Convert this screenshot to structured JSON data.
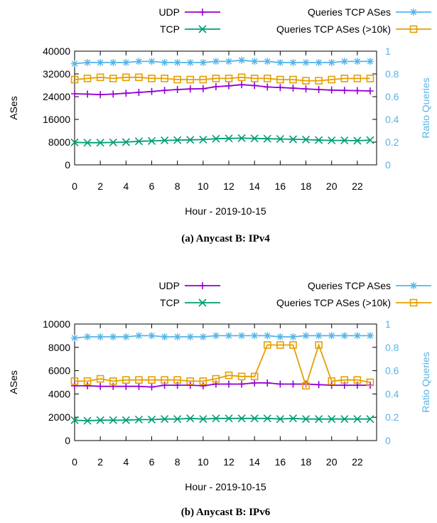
{
  "chart_data": [
    {
      "type": "line",
      "caption": "(a) Anycast B: IPv4",
      "xlabel": "Hour - 2019-10-15",
      "ylabel": "ASes",
      "ylabel_right": "Ratio Queries",
      "x": [
        0,
        1,
        2,
        3,
        4,
        5,
        6,
        7,
        8,
        9,
        10,
        11,
        12,
        13,
        14,
        15,
        16,
        17,
        18,
        19,
        20,
        21,
        22,
        23
      ],
      "x_ticks": [
        "0",
        "2",
        "4",
        "6",
        "8",
        "10",
        "12",
        "14",
        "16",
        "18",
        "20",
        "22"
      ],
      "ylim": [
        0,
        40000
      ],
      "y_ticks": [
        "0",
        "8000",
        "16000",
        "24000",
        "32000",
        "40000"
      ],
      "ylim_right": [
        0,
        1
      ],
      "y_ticks_right": [
        "0",
        "0.2",
        "0.4",
        "0.6",
        "0.8",
        "1"
      ],
      "legend_placement": "top",
      "series": [
        {
          "name": "UDP",
          "axis": "left",
          "marker": "plus",
          "color": "#9400d3",
          "values": [
            25000,
            24900,
            24700,
            24900,
            25200,
            25500,
            25800,
            26200,
            26500,
            26700,
            26800,
            27500,
            27800,
            28200,
            27900,
            27400,
            27200,
            27000,
            26700,
            26500,
            26300,
            26200,
            26100,
            26000
          ]
        },
        {
          "name": "TCP",
          "axis": "left",
          "marker": "x",
          "color": "#009e73",
          "values": [
            7900,
            7800,
            7800,
            7900,
            8000,
            8300,
            8400,
            8600,
            8700,
            8800,
            8900,
            9200,
            9300,
            9400,
            9300,
            9200,
            9100,
            9000,
            8900,
            8700,
            8600,
            8600,
            8500,
            8700
          ]
        },
        {
          "name": "Queries TCP ASes",
          "axis": "right",
          "marker": "star",
          "color": "#56b4e9",
          "values": [
            0.89,
            0.9,
            0.9,
            0.9,
            0.9,
            0.91,
            0.91,
            0.9,
            0.9,
            0.9,
            0.9,
            0.91,
            0.91,
            0.92,
            0.91,
            0.91,
            0.9,
            0.9,
            0.9,
            0.9,
            0.9,
            0.91,
            0.91,
            0.91
          ]
        },
        {
          "name": "Queries TCP ASes (>10k)",
          "axis": "right",
          "marker": "square",
          "color": "#e69f00",
          "values": [
            0.75,
            0.76,
            0.77,
            0.76,
            0.77,
            0.77,
            0.76,
            0.76,
            0.75,
            0.75,
            0.75,
            0.76,
            0.76,
            0.77,
            0.76,
            0.76,
            0.75,
            0.75,
            0.74,
            0.74,
            0.75,
            0.76,
            0.76,
            0.76
          ]
        }
      ]
    },
    {
      "type": "line",
      "caption": "(b) Anycast B: IPv6",
      "xlabel": "Hour - 2019-10-15",
      "ylabel": "ASes",
      "ylabel_right": "Ratio Queries",
      "x": [
        0,
        1,
        2,
        3,
        4,
        5,
        6,
        7,
        8,
        9,
        10,
        11,
        12,
        13,
        14,
        15,
        16,
        17,
        18,
        19,
        20,
        21,
        22,
        23
      ],
      "x_ticks": [
        "0",
        "2",
        "4",
        "6",
        "8",
        "10",
        "12",
        "14",
        "16",
        "18",
        "20",
        "22"
      ],
      "ylim": [
        0,
        10000
      ],
      "y_ticks": [
        "0",
        "2000",
        "4000",
        "6000",
        "8000",
        "10000"
      ],
      "ylim_right": [
        0,
        1
      ],
      "y_ticks_right": [
        "0",
        "0.2",
        "0.4",
        "0.6",
        "0.8",
        "1"
      ],
      "legend_placement": "top",
      "series": [
        {
          "name": "UDP",
          "axis": "left",
          "marker": "plus",
          "color": "#9400d3",
          "values": [
            4700,
            4700,
            4650,
            4650,
            4650,
            4650,
            4600,
            4750,
            4750,
            4750,
            4700,
            4850,
            4850,
            4850,
            4950,
            4950,
            4850,
            4850,
            4850,
            4800,
            4750,
            4750,
            4750,
            4750
          ]
        },
        {
          "name": "TCP",
          "axis": "left",
          "marker": "x",
          "color": "#009e73",
          "values": [
            1750,
            1700,
            1750,
            1750,
            1750,
            1800,
            1800,
            1850,
            1850,
            1900,
            1850,
            1900,
            1900,
            1900,
            1900,
            1900,
            1850,
            1900,
            1850,
            1850,
            1850,
            1850,
            1850,
            1850
          ]
        },
        {
          "name": "Queries TCP ASes",
          "axis": "right",
          "marker": "star",
          "color": "#56b4e9",
          "values": [
            0.88,
            0.89,
            0.89,
            0.89,
            0.89,
            0.9,
            0.9,
            0.89,
            0.89,
            0.89,
            0.89,
            0.9,
            0.9,
            0.9,
            0.9,
            0.9,
            0.89,
            0.89,
            0.9,
            0.9,
            0.9,
            0.9,
            0.9,
            0.9
          ]
        },
        {
          "name": "Queries TCP ASes (>10k)",
          "axis": "right",
          "marker": "square",
          "color": "#e69f00",
          "values": [
            0.51,
            0.51,
            0.53,
            0.51,
            0.52,
            0.52,
            0.52,
            0.52,
            0.52,
            0.51,
            0.51,
            0.53,
            0.56,
            0.55,
            0.55,
            0.82,
            0.82,
            0.82,
            0.47,
            0.82,
            0.51,
            0.52,
            0.52,
            0.5
          ]
        }
      ]
    }
  ]
}
